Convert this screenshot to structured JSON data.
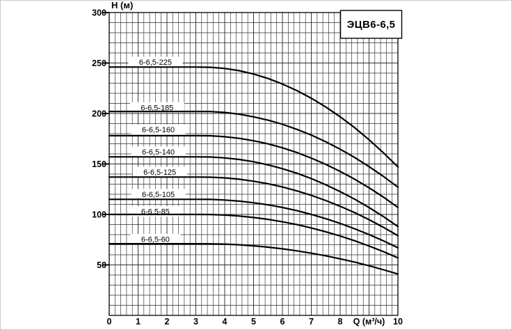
{
  "figure": {
    "background": "#ffffff",
    "frame_color": "#c9c9c9",
    "grid_color": "#2b2b2b",
    "curve_color": "#000000"
  },
  "chart_data": {
    "type": "line",
    "title": "ЭЦВ6-6,5",
    "ylabel": "H (м)",
    "xlabel": "Q (м³/ч)",
    "xlim": [
      0,
      10
    ],
    "ylim": [
      0,
      300
    ],
    "grid": "on",
    "x_minor_step": 0.2,
    "x_major_step": 1,
    "y_minor_step": 10,
    "y_major_step": 50,
    "y_tick_labels": [
      50,
      100,
      150,
      200,
      250,
      300
    ],
    "x_tick_labels": [
      0,
      1,
      2,
      3,
      4,
      5,
      6,
      7,
      8,
      10
    ],
    "x_axis_label_at": 9,
    "legend_position": "inline-labels",
    "q": [
      0,
      1,
      2,
      3,
      3.5,
      4,
      4.5,
      5,
      5.5,
      6,
      6.5,
      7,
      7.5,
      8,
      8.5,
      9,
      9.5,
      10
    ],
    "series": [
      {
        "name": "6-6,5-225",
        "label_q": 1.6,
        "label_h": 251,
        "values": [
          246,
          246,
          246,
          246,
          245.8,
          244.6,
          242.4,
          239.1,
          234.7,
          229.2,
          222.7,
          215.1,
          206.4,
          196.7,
          185.9,
          174,
          161,
          147
        ]
      },
      {
        "name": "6-6,5-185",
        "label_q": 1.66,
        "label_h": 206,
        "values": [
          202,
          202,
          202,
          202,
          201.9,
          201,
          199.3,
          196.7,
          193.4,
          189.3,
          184.3,
          178.6,
          172,
          164.6,
          156.4,
          147.4,
          137.6,
          127
        ]
      },
      {
        "name": "6-6,5-160",
        "label_q": 1.7,
        "label_h": 184,
        "values": [
          178,
          178,
          178,
          178,
          177.9,
          177,
          175.4,
          173,
          169.9,
          166,
          161.3,
          155.8,
          149.6,
          142.6,
          134.9,
          126.4,
          117.1,
          107
        ]
      },
      {
        "name": "6-6,5-140",
        "label_q": 1.7,
        "label_h": 162,
        "values": [
          157,
          157,
          157,
          157,
          156.9,
          156,
          154.5,
          152.2,
          149.1,
          145.3,
          140.8,
          135.5,
          129.4,
          122.6,
          115.1,
          106.8,
          97.8,
          88
        ]
      },
      {
        "name": "6-6,5-125",
        "label_q": 1.75,
        "label_h": 142,
        "values": [
          137,
          137,
          137,
          137,
          136.9,
          136.2,
          134.9,
          132.9,
          130.4,
          127.2,
          123.3,
          118.9,
          113.8,
          108.1,
          101.8,
          94.8,
          87.2,
          79
        ]
      },
      {
        "name": "6-6,5-105",
        "label_q": 1.7,
        "label_h": 120,
        "values": [
          115,
          115,
          115,
          115,
          114.9,
          114.3,
          113.2,
          111.6,
          109.5,
          106.9,
          103.7,
          100,
          95.8,
          91.1,
          85.8,
          80.1,
          73.8,
          67
        ]
      },
      {
        "name": "6-6,5-85",
        "label_q": 1.6,
        "label_h": 103,
        "values": [
          100,
          100,
          100,
          100,
          99.9,
          99.4,
          98.4,
          97,
          95.1,
          92.7,
          89.9,
          86.6,
          82.8,
          78.6,
          73.9,
          68.7,
          63.1,
          57
        ]
      },
      {
        "name": "6-6,5-60",
        "label_q": 1.6,
        "label_h": 75.5,
        "values": [
          71,
          71,
          71,
          71,
          70.9,
          70.6,
          69.9,
          68.9,
          67.6,
          65.9,
          63.9,
          61.6,
          59,
          56,
          52.8,
          49.2,
          45.2,
          41
        ]
      }
    ]
  }
}
